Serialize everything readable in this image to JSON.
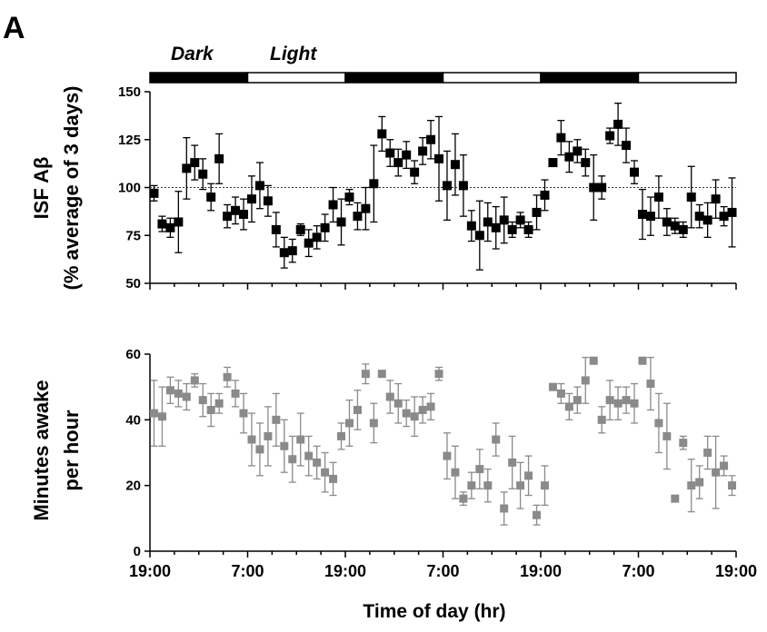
{
  "figure": {
    "panel_label": "A",
    "dark_label": "Dark",
    "light_label": "Light",
    "top_ylabel_line1": "ISF Aβ",
    "top_ylabel_line2": "(% average of 3 days)",
    "bottom_ylabel_line1": "Minutes awake",
    "bottom_ylabel_line2": "per hour",
    "xlabel": "Time of day (hr)"
  },
  "chart_data": [
    {
      "type": "scatter",
      "panel": "top",
      "ylabel": "ISF Aβ (% average of 3 days)",
      "xlabel": "",
      "xlim": [
        0,
        72
      ],
      "ylim": [
        50,
        150
      ],
      "yticks": [
        50,
        75,
        100,
        125,
        150
      ],
      "xtick_positions": [
        0,
        12,
        24,
        36,
        48,
        60,
        72
      ],
      "xtick_labels": [
        "",
        "",
        "",
        "",
        "",
        "",
        ""
      ],
      "reference_line": 100,
      "marker_color": "#000000",
      "light_dark_bar": [
        {
          "start": 0,
          "end": 12,
          "state": "dark"
        },
        {
          "start": 12,
          "end": 24,
          "state": "light"
        },
        {
          "start": 24,
          "end": 36,
          "state": "dark"
        },
        {
          "start": 36,
          "end": 48,
          "state": "light"
        },
        {
          "start": 48,
          "end": 60,
          "state": "dark"
        },
        {
          "start": 60,
          "end": 72,
          "state": "light"
        }
      ],
      "series": [
        {
          "x": [
            0.5,
            1.5,
            2.5,
            3.5,
            4.5,
            5.5,
            6.5,
            7.5,
            8.5,
            9.5,
            10.5,
            11.5,
            12.5,
            13.5,
            14.5,
            15.5,
            16.5,
            17.5,
            18.5,
            19.5,
            20.5,
            21.5,
            22.5,
            23.5,
            24.5,
            25.5,
            26.5,
            27.5,
            28.5,
            29.5,
            30.5,
            31.5,
            32.5,
            33.5,
            34.5,
            35.5,
            36.5,
            37.5,
            38.5,
            39.5,
            40.5,
            41.5,
            42.5,
            43.5,
            44.5,
            45.5,
            46.5,
            47.5,
            48.5,
            49.5,
            50.5,
            51.5,
            52.5,
            53.5,
            54.5,
            55.5,
            56.5,
            57.5,
            58.5,
            59.5,
            60.5,
            61.5,
            62.5,
            63.5,
            64.5,
            65.5,
            66.5,
            67.5,
            68.5,
            69.5,
            70.5,
            71.5
          ],
          "y": [
            97,
            81,
            79,
            82,
            110,
            113,
            107,
            95,
            115,
            85,
            88,
            86,
            94,
            101,
            93,
            78,
            66,
            67,
            78,
            71,
            74,
            79,
            91,
            82,
            95,
            85,
            89,
            102,
            128,
            118,
            113,
            117,
            108,
            119,
            125,
            115,
            101,
            112,
            101,
            80,
            75,
            82,
            79,
            83,
            78,
            83,
            78,
            87,
            96,
            113,
            126,
            116,
            119,
            113,
            100,
            100,
            127,
            133,
            122,
            108,
            86,
            85,
            95,
            82,
            80,
            78,
            95,
            85,
            83,
            94,
            85,
            87
          ],
          "err": [
            4,
            4,
            5,
            16,
            16,
            9,
            8,
            7,
            13,
            6,
            7,
            8,
            12,
            12,
            8,
            9,
            8,
            6,
            3,
            7,
            6,
            7,
            9,
            12,
            4,
            7,
            11,
            20,
            9,
            7,
            7,
            7,
            6,
            7,
            10,
            22,
            18,
            16,
            16,
            8,
            18,
            10,
            11,
            12,
            4,
            4,
            4,
            9,
            8,
            2,
            9,
            8,
            6,
            7,
            17,
            6,
            4,
            11,
            9,
            6,
            13,
            10,
            11,
            7,
            4,
            4,
            16,
            6,
            9,
            10,
            5,
            18
          ]
        }
      ]
    },
    {
      "type": "scatter",
      "panel": "bottom",
      "ylabel": "Minutes awake per hour",
      "xlabel": "Time of day (hr)",
      "xlim": [
        0,
        72
      ],
      "ylim": [
        0,
        60
      ],
      "yticks": [
        0,
        20,
        40,
        60
      ],
      "xtick_positions": [
        0,
        12,
        24,
        36,
        48,
        60,
        72
      ],
      "xtick_labels": [
        "19:00",
        "7:00",
        "19:00",
        "7:00",
        "19:00",
        "7:00",
        "19:00"
      ],
      "marker_color": "#8a8a8a",
      "series": [
        {
          "x": [
            0.5,
            1.5,
            2.5,
            3.5,
            4.5,
            5.5,
            6.5,
            7.5,
            8.5,
            9.5,
            10.5,
            11.5,
            12.5,
            13.5,
            14.5,
            15.5,
            16.5,
            17.5,
            18.5,
            19.5,
            20.5,
            21.5,
            22.5,
            23.5,
            24.5,
            25.5,
            26.5,
            27.5,
            28.5,
            29.5,
            30.5,
            31.5,
            32.5,
            33.5,
            34.5,
            35.5,
            36.5,
            37.5,
            38.5,
            39.5,
            40.5,
            41.5,
            42.5,
            43.5,
            44.5,
            45.5,
            46.5,
            47.5,
            48.5,
            49.5,
            50.5,
            51.5,
            52.5,
            53.5,
            54.5,
            55.5,
            56.5,
            57.5,
            58.5,
            59.5,
            60.5,
            61.5,
            62.5,
            63.5,
            64.5,
            65.5,
            66.5,
            67.5,
            68.5,
            69.5,
            70.5,
            71.5
          ],
          "y": [
            42,
            41,
            49,
            48,
            47,
            52,
            46,
            43,
            45,
            53,
            48,
            42,
            34,
            31,
            35,
            40,
            32,
            28,
            34,
            29,
            27,
            24,
            22,
            35,
            39,
            43,
            54,
            39,
            54,
            47,
            45,
            42,
            41,
            43,
            44,
            54,
            29,
            24,
            16,
            20,
            25,
            20,
            34,
            13,
            27,
            20,
            23,
            11,
            20,
            50,
            48,
            44,
            46,
            52,
            58,
            40,
            46,
            45,
            46,
            45,
            58,
            51,
            39,
            35,
            16,
            33,
            20,
            21,
            30,
            24,
            26,
            20
          ],
          "err": [
            10,
            9,
            4,
            4,
            4,
            2,
            5,
            5,
            3,
            3,
            4,
            6,
            8,
            8,
            9,
            8,
            8,
            7,
            8,
            6,
            5,
            6,
            5,
            4,
            7,
            6,
            3,
            6,
            1,
            5,
            6,
            4,
            6,
            4,
            4,
            2,
            7,
            8,
            2,
            4,
            6,
            5,
            5,
            5,
            8,
            7,
            6,
            3,
            6,
            1,
            3,
            4,
            4,
            7,
            1,
            4,
            6,
            5,
            4,
            6,
            1,
            8,
            9,
            10,
            1,
            2,
            8,
            5,
            5,
            11,
            3,
            3
          ]
        }
      ]
    }
  ]
}
